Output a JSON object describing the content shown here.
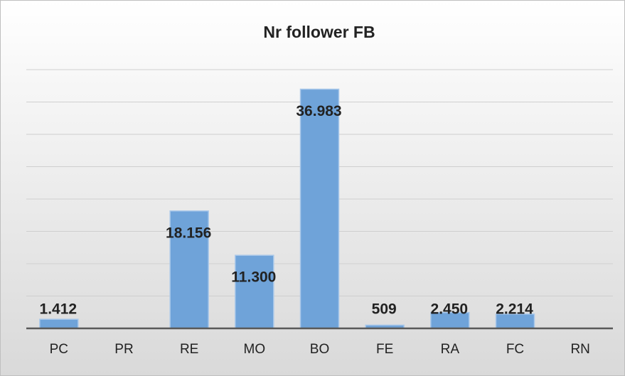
{
  "chart_data": {
    "type": "bar",
    "title": "Nr follower FB",
    "categories": [
      "PC",
      "PR",
      "RE",
      "MO",
      "BO",
      "FE",
      "RA",
      "FC",
      "RN"
    ],
    "values": [
      1412,
      null,
      18156,
      11300,
      36983,
      509,
      2450,
      2214,
      null
    ],
    "value_labels": [
      "1.412",
      null,
      "18.156",
      "11.300",
      "36.983",
      "509",
      "2.450",
      "2.214",
      null
    ],
    "color": "#6fa3d9",
    "ylim": [
      0,
      40000
    ],
    "yticks": [
      0,
      5000,
      10000,
      15000,
      20000,
      25000,
      30000,
      35000,
      40000
    ],
    "grid": true
  }
}
